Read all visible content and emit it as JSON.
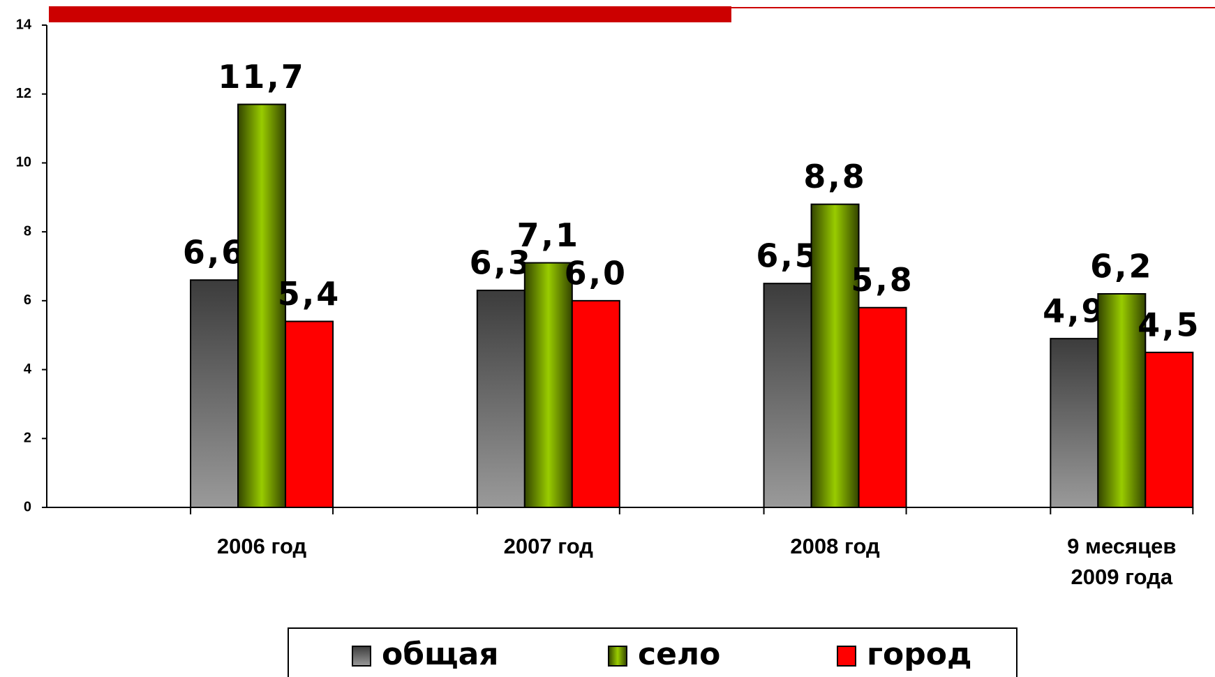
{
  "chart_data": {
    "type": "bar",
    "categories": [
      "2006 год",
      "2007 год",
      "2008 год",
      "9 месяцев 2009 года"
    ],
    "series": [
      {
        "name": "общая",
        "color": "#9a9a9a",
        "values": [
          6.6,
          6.3,
          6.5,
          4.9
        ],
        "value_labels": [
          "6,6",
          "6,3",
          "6,5",
          "4,9"
        ]
      },
      {
        "name": "село",
        "color": "#99cc00",
        "values": [
          11.7,
          7.1,
          8.8,
          6.2
        ],
        "value_labels": [
          "11,7",
          "7,1",
          "8,8",
          "6,2"
        ]
      },
      {
        "name": "город",
        "color": "#ff0000",
        "values": [
          5.4,
          6.0,
          5.8,
          4.5
        ],
        "value_labels": [
          "5,4",
          "6,0",
          "5,8",
          "4,5"
        ]
      }
    ],
    "ylim": [
      0,
      14
    ],
    "yticks": [
      0,
      2,
      4,
      6,
      8,
      10,
      12,
      14
    ]
  }
}
